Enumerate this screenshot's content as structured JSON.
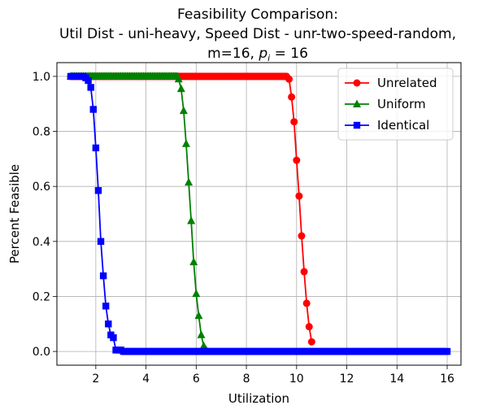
{
  "chart_data": {
    "type": "line",
    "title": {
      "line1": "Feasibility Comparison:",
      "line2": "Util Dist - uni-heavy, Speed Dist - unr-two-speed-random,",
      "line3_prefix": "m=16, ",
      "line3_sym": "p",
      "line3_sub": "i",
      "line3_suffix": " = 16"
    },
    "xlabel": "Utilization",
    "ylabel": "Percent Feasible",
    "xlim": [
      0.45,
      16.55
    ],
    "ylim": [
      -0.05,
      1.05
    ],
    "xticks": [
      2,
      4,
      6,
      8,
      10,
      12,
      14,
      16
    ],
    "yticks": [
      0.0,
      0.2,
      0.4,
      0.6,
      0.8,
      1.0
    ],
    "xtick_labels": [
      "2",
      "4",
      "6",
      "8",
      "10",
      "12",
      "14",
      "16"
    ],
    "ytick_labels": [
      "0.0",
      "0.2",
      "0.4",
      "0.6",
      "0.8",
      "1.0"
    ],
    "grid": true,
    "legend_position": "top-right",
    "series": [
      {
        "name": "Unrelated",
        "color": "#ff0000",
        "marker": "circle",
        "flat_start": 1.0,
        "flat_end": 9.55,
        "flat_value": 1.0,
        "points": [
          [
            9.6,
            1.0
          ],
          [
            9.7,
            0.99
          ],
          [
            9.8,
            0.925
          ],
          [
            9.9,
            0.835
          ],
          [
            10.0,
            0.695
          ],
          [
            10.1,
            0.565
          ],
          [
            10.2,
            0.42
          ],
          [
            10.3,
            0.29
          ],
          [
            10.4,
            0.175
          ],
          [
            10.5,
            0.09
          ],
          [
            10.6,
            0.035
          ]
        ]
      },
      {
        "name": "Uniform",
        "color": "#008000",
        "marker": "triangle",
        "flat_start": 1.0,
        "flat_end": 5.2,
        "flat_value": 1.0,
        "points": [
          [
            5.25,
            1.0
          ],
          [
            5.3,
            0.99
          ],
          [
            5.4,
            0.955
          ],
          [
            5.5,
            0.875
          ],
          [
            5.6,
            0.755
          ],
          [
            5.7,
            0.615
          ],
          [
            5.8,
            0.475
          ],
          [
            5.9,
            0.325
          ],
          [
            6.0,
            0.21
          ],
          [
            6.1,
            0.13
          ],
          [
            6.2,
            0.06
          ],
          [
            6.3,
            0.02
          ],
          [
            6.4,
            0.005
          ]
        ]
      },
      {
        "name": "Identical",
        "color": "#0000ff",
        "marker": "square",
        "points": [
          [
            1.0,
            1.0
          ],
          [
            1.1,
            1.0
          ],
          [
            1.2,
            1.0
          ],
          [
            1.3,
            1.0
          ],
          [
            1.4,
            1.0
          ],
          [
            1.5,
            1.0
          ],
          [
            1.6,
            0.995
          ],
          [
            1.7,
            0.985
          ],
          [
            1.8,
            0.96
          ],
          [
            1.9,
            0.88
          ],
          [
            2.0,
            0.74
          ],
          [
            2.1,
            0.585
          ],
          [
            2.2,
            0.4
          ],
          [
            2.3,
            0.275
          ],
          [
            2.4,
            0.165
          ],
          [
            2.5,
            0.1
          ],
          [
            2.6,
            0.06
          ],
          [
            2.7,
            0.05
          ],
          [
            2.8,
            0.005
          ],
          [
            2.9,
            0.005
          ],
          [
            3.0,
            0.005
          ]
        ],
        "flat_start": 3.1,
        "flat_end": 16.0,
        "flat_value": 0.0
      }
    ]
  }
}
